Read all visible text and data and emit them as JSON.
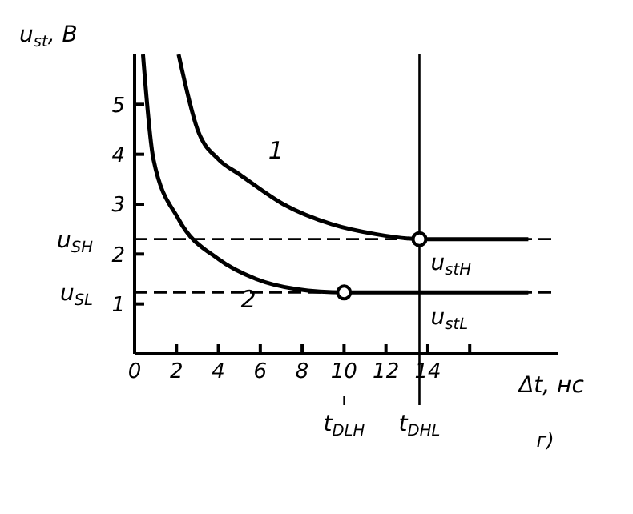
{
  "chart_data": {
    "type": "line",
    "xlabel": "Δt, нс",
    "ylabel": "u$_{st}$, B",
    "xlim": [
      0,
      20.2
    ],
    "ylim": [
      0,
      6
    ],
    "xticks": [
      0,
      2,
      4,
      6,
      8,
      10,
      12,
      14,
      {
        "value": 16,
        "label": null
      }
    ],
    "yticks": [
      1,
      2,
      3,
      4,
      5
    ],
    "grid": false,
    "series": [
      {
        "name": "1",
        "color": "#000000",
        "x": [
          2.1,
          3,
          4,
          5,
          7.1,
          9.4,
          11.5,
          13.6,
          18.8
        ],
        "values": [
          6.0,
          4.5,
          3.9,
          3.6,
          3.0,
          2.6,
          2.4,
          2.3,
          2.3
        ]
      },
      {
        "name": "2",
        "color": "#000000",
        "x": [
          0.4,
          0.9,
          2.1,
          4.0,
          5.8,
          7.7,
          10,
          13.6,
          18.8
        ],
        "values": [
          6.0,
          3.9,
          2.7,
          1.9,
          1.5,
          1.3,
          1.23,
          1.23,
          1.23
        ]
      },
      {
        "type": "scatter",
        "color": "#000000",
        "marker": "circle",
        "x": [
          10,
          13.6
        ],
        "values": [
          1.23,
          2.3
        ]
      }
    ],
    "ref_lines": [
      {
        "axis": "y",
        "value": 2.3,
        "label": "u$_{SH}$",
        "line_style": "dashed",
        "color": "#000000"
      },
      {
        "axis": "y",
        "value": 1.23,
        "label": "u$_{SL}$",
        "line_style": "dashed",
        "color": "#000000"
      },
      {
        "axis": "x",
        "value": 13.6,
        "label": "t$_{DHL}$",
        "line_style": "solid",
        "color": "#000000"
      }
    ],
    "annotations": [
      "t$_{DLH}$",
      "u$_{stH}$",
      "u$_{stL}$",
      "г)"
    ]
  }
}
